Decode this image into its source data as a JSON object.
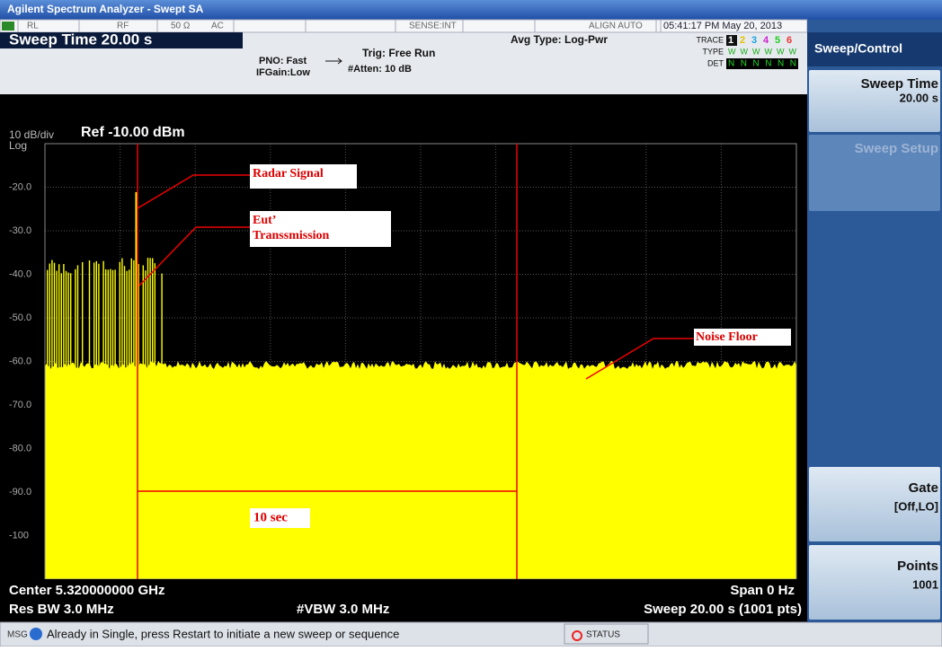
{
  "title_bar": "Agilent Spectrum Analyzer - Swept SA",
  "header": {
    "status_row": [
      "RL",
      "RF",
      "50 Ω",
      "AC",
      "SENSE:INT",
      "ALIGN AUTO"
    ],
    "datetime": "05:41:17 PM May 20, 2013",
    "active_function": "Sweep Time  20.00 s",
    "pno": "PNO: Fast",
    "ifgain": "IFGain:Low",
    "trig": "Trig: Free Run",
    "atten": "#Atten: 10 dB",
    "avg_type": "Avg Type: Log-Pwr",
    "trace_label": "TRACE",
    "trace_numbers": [
      "1",
      "2",
      "3",
      "4",
      "5",
      "6"
    ],
    "type_label": "TYPE",
    "type_value": "WWWWWW",
    "det_label": "DET",
    "det_value": "NNNNNN"
  },
  "plot": {
    "scale": "10 dB/div",
    "scale_type": "Log",
    "ref": "Ref -10.00 dBm",
    "y_labels": [
      "-20.0",
      "-30.0",
      "-40.0",
      "-50.0",
      "-60.0",
      "-70.0",
      "-80.0",
      "-90.0",
      "-100"
    ],
    "annotations": {
      "radar": "Radar Signal",
      "eut": [
        "Eut’",
        "Transsmission"
      ],
      "noise": "Noise Floor",
      "period": "10 sec"
    }
  },
  "footer": {
    "center": "Center 5.320000000 GHz",
    "span": "Span 0 Hz",
    "res_bw": "Res BW 3.0 MHz",
    "vbw": "#VBW 3.0 MHz",
    "sweep": "Sweep  20.00 s (1001 pts)"
  },
  "status": {
    "msg": "MSG",
    "text": "Already in Single, press Restart to initiate a new sweep or sequence",
    "status": "STATUS"
  },
  "softkeys": {
    "title": "Sweep/Control",
    "keys": [
      {
        "label": "Sweep Time",
        "value": "20.00 s"
      },
      {
        "label": "Sweep Setup"
      },
      {
        "label": "Gate",
        "value": "[Off,LO]"
      },
      {
        "label": "Points",
        "value": "1001"
      }
    ]
  }
}
